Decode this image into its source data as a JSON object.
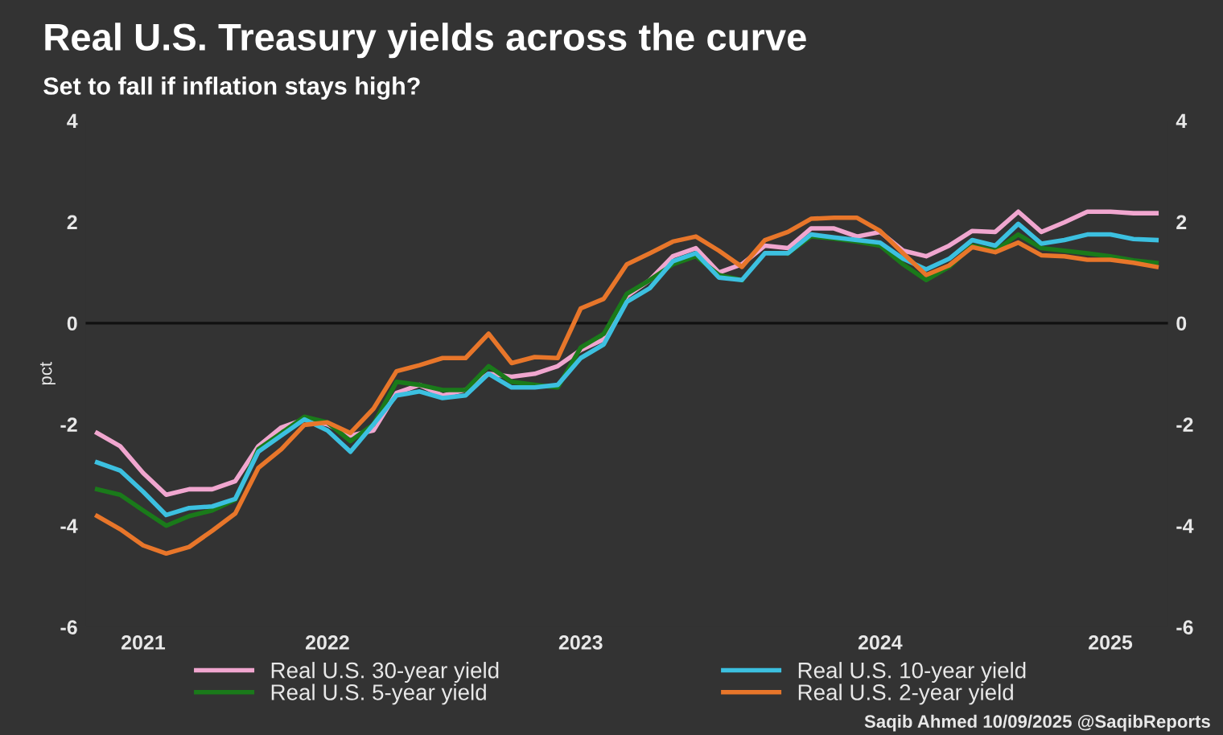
{
  "chart_data": {
    "type": "line",
    "title": "Real U.S. Treasury yields across the curve",
    "subtitle": "Set to fall if inflation stays high?",
    "ylabel": "pct",
    "categories": [
      null,
      null,
      "2021",
      null,
      null,
      null,
      null,
      null,
      null,
      null,
      "2022",
      null,
      null,
      null,
      null,
      null,
      null,
      null,
      null,
      null,
      null,
      "2023",
      null,
      null,
      null,
      null,
      null,
      null,
      null,
      null,
      null,
      null,
      null,
      null,
      "2024",
      null,
      null,
      null,
      null,
      null,
      null,
      null,
      null,
      null,
      "2025",
      null,
      null
    ],
    "series": [
      {
        "name": "Real U.S. 30-year yield",
        "color": "#f0a6cf",
        "values": [
          -2.17,
          -2.43,
          -2.96,
          -3.39,
          -3.28,
          -3.28,
          -3.12,
          -2.43,
          -2.06,
          -1.9,
          -2.0,
          -2.22,
          -2.12,
          -1.38,
          -1.22,
          -1.43,
          -1.32,
          -1.0,
          -1.06,
          -1.0,
          -0.85,
          -0.53,
          -0.32,
          0.53,
          0.85,
          1.32,
          1.48,
          1.0,
          1.16,
          1.53,
          1.48,
          1.87,
          1.87,
          1.71,
          1.8,
          1.43,
          1.32,
          1.53,
          1.82,
          1.8,
          2.2,
          1.8,
          1.99,
          2.2,
          2.2,
          2.17,
          2.17
        ]
      },
      {
        "name": "Real U.S. 5-year yield",
        "color": "#1a7a1a",
        "values": [
          -3.28,
          -3.39,
          -3.7,
          -4.0,
          -3.81,
          -3.7,
          -3.49,
          -2.49,
          -2.17,
          -1.85,
          -1.96,
          -2.33,
          -2.0,
          -1.16,
          -1.22,
          -1.32,
          -1.32,
          -0.85,
          -1.16,
          -1.22,
          -1.27,
          -0.48,
          -0.21,
          0.58,
          0.85,
          1.16,
          1.32,
          0.95,
          0.85,
          null,
          1.38,
          1.71,
          1.67,
          1.61,
          1.53,
          1.16,
          0.85,
          1.11,
          1.53,
          1.43,
          1.75,
          1.48,
          1.43,
          1.38,
          1.32,
          1.24,
          1.19
        ]
      },
      {
        "name": "Real U.S. 10-year yield",
        "color": "#3cc0e0",
        "values": [
          -2.75,
          -2.91,
          -3.33,
          -3.79,
          -3.65,
          -3.62,
          -3.47,
          -2.54,
          -2.22,
          -1.9,
          -2.12,
          -2.54,
          -2.0,
          -1.43,
          -1.35,
          -1.48,
          -1.43,
          -1.0,
          -1.27,
          -1.27,
          -1.22,
          -0.69,
          -0.42,
          0.42,
          0.69,
          1.22,
          1.38,
          0.9,
          0.85,
          1.38,
          1.38,
          1.75,
          1.69,
          1.64,
          1.59,
          1.27,
          1.06,
          1.27,
          1.64,
          1.53,
          1.96,
          1.57,
          1.64,
          1.75,
          1.75,
          1.66,
          1.64
        ]
      },
      {
        "name": "Real U.S. 2-year yield",
        "color": "#e8762a",
        "values": [
          -3.81,
          -4.07,
          -4.39,
          -4.55,
          -4.42,
          -4.1,
          -3.76,
          -2.86,
          -2.49,
          -2.01,
          -1.96,
          -2.17,
          -1.69,
          -0.95,
          -0.83,
          -0.69,
          -0.69,
          -0.21,
          -0.79,
          -0.67,
          -0.69,
          0.29,
          0.48,
          1.16,
          1.38,
          1.61,
          1.71,
          1.43,
          1.11,
          1.64,
          1.8,
          2.06,
          2.08,
          2.08,
          1.82,
          1.38,
          0.95,
          1.14,
          1.5,
          1.4,
          1.59,
          1.34,
          1.32,
          1.25,
          1.25,
          1.19,
          1.11
        ]
      }
    ],
    "ylim": [
      -6,
      4
    ],
    "yticks": [
      -6,
      -4,
      -2,
      0,
      2,
      4
    ],
    "y2lim": [
      -6,
      4
    ],
    "y2ticks": [
      -6,
      -4,
      -2,
      0,
      2,
      4
    ],
    "ref_lines": [
      {
        "axis": "y",
        "value": 0,
        "color": "#111111"
      }
    ],
    "grid": false,
    "legend": "bottom",
    "marker": "none",
    "line_style": "solid",
    "annotations": [
      "Saqib Ahmed 10/09/2025 @SaqibReports"
    ]
  }
}
